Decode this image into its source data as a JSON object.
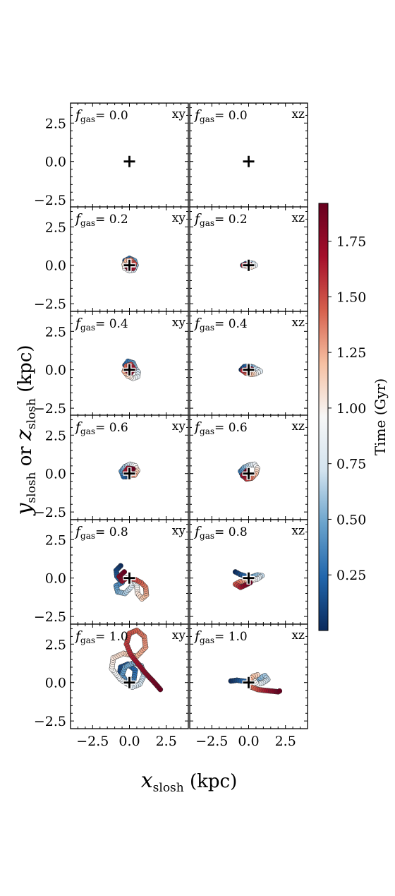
{
  "chart_data": {
    "type": "scatter",
    "xlabel": {
      "main": "x",
      "sub": "slosh",
      "unit": " (kpc)"
    },
    "ylabel": {
      "main1": "y",
      "sub1": "slosh",
      "or": " or ",
      "main2": "z",
      "sub2": "slosh",
      "unit": " (kpc)"
    },
    "xlim": [
      -4.0,
      4.0
    ],
    "ylim": [
      -3.0,
      3.8
    ],
    "xticks": [
      -2.5,
      0.0,
      2.5
    ],
    "xtick_labels": [
      "−2.5",
      "0.0",
      "2.5"
    ],
    "yticks": [
      -2.5,
      0.0,
      2.5
    ],
    "ytick_labels": [
      "−2.5",
      "0.0",
      "2.5"
    ],
    "colorbar": {
      "label": "Time (Gyr)",
      "range": [
        0.0,
        1.92
      ],
      "ticks": [
        0.25,
        0.5,
        0.75,
        1.0,
        1.25,
        1.5,
        1.75
      ],
      "tick_labels": [
        "0.25",
        "0.50",
        "0.75",
        "1.00",
        "1.25",
        "1.50",
        "1.75"
      ],
      "cmap_stops": [
        "#0b2a5c",
        "#2166ac",
        "#6aa3cc",
        "#d3e3ef",
        "#f7f7f7",
        "#f6c0a2",
        "#d6604d",
        "#a50f2b",
        "#67001f"
      ]
    },
    "marker_center": [
      0.0,
      0.0
    ],
    "fgas_symbol": {
      "main": "f",
      "sub": "gas"
    },
    "rows": [
      {
        "fgas": "= 0.0",
        "xy": {
          "label": "xy",
          "path": [
            [
              0,
              0
            ],
            [
              0.02,
              0.01
            ],
            [
              -0.01,
              0.02
            ]
          ]
        },
        "xz": {
          "label": "xz",
          "path": [
            [
              0,
              0
            ],
            [
              0.02,
              0.0
            ],
            [
              -0.01,
              0.01
            ]
          ]
        }
      },
      {
        "fgas": "= 0.2",
        "xy": {
          "label": "xy",
          "path": [
            [
              -0.3,
              0.0
            ],
            [
              -0.3,
              0.3
            ],
            [
              0.0,
              0.45
            ],
            [
              0.35,
              0.3
            ],
            [
              0.45,
              0.0
            ],
            [
              0.3,
              -0.3
            ],
            [
              0.0,
              -0.35
            ],
            [
              -0.3,
              -0.2
            ],
            [
              -0.35,
              0.05
            ],
            [
              -0.2,
              0.3
            ],
            [
              0.1,
              0.35
            ],
            [
              0.35,
              0.1
            ],
            [
              0.25,
              -0.2
            ],
            [
              -0.05,
              -0.25
            ],
            [
              -0.25,
              0.0
            ]
          ]
        },
        "xz": {
          "label": "xz",
          "path": [
            [
              -0.4,
              0.0
            ],
            [
              -0.2,
              0.1
            ],
            [
              0.1,
              0.15
            ],
            [
              0.35,
              0.1
            ],
            [
              0.45,
              0.0
            ],
            [
              0.2,
              -0.1
            ],
            [
              -0.1,
              -0.05
            ],
            [
              -0.35,
              0.0
            ],
            [
              -0.2,
              0.05
            ],
            [
              0.1,
              0.05
            ]
          ]
        }
      },
      {
        "fgas": "= 0.4",
        "xy": {
          "label": "xy",
          "path": [
            [
              0.0,
              0.0
            ],
            [
              -0.3,
              0.3
            ],
            [
              -0.1,
              0.55
            ],
            [
              0.25,
              0.45
            ],
            [
              0.4,
              0.1
            ],
            [
              0.6,
              -0.15
            ],
            [
              0.55,
              -0.45
            ],
            [
              0.25,
              -0.55
            ],
            [
              -0.1,
              -0.4
            ],
            [
              -0.35,
              -0.1
            ],
            [
              -0.2,
              0.25
            ],
            [
              0.1,
              0.35
            ],
            [
              0.3,
              0.05
            ],
            [
              0.1,
              -0.2
            ],
            [
              -0.1,
              -0.1
            ]
          ]
        },
        "xz": {
          "label": "xz",
          "path": [
            [
              -0.5,
              0.0
            ],
            [
              -0.3,
              0.2
            ],
            [
              0.0,
              0.25
            ],
            [
              0.35,
              0.15
            ],
            [
              0.65,
              0.0
            ],
            [
              0.8,
              -0.1
            ],
            [
              0.5,
              -0.25
            ],
            [
              0.15,
              -0.3
            ],
            [
              -0.2,
              -0.2
            ],
            [
              -0.4,
              -0.05
            ],
            [
              -0.1,
              0.05
            ],
            [
              0.2,
              0.05
            ]
          ]
        }
      },
      {
        "fgas": "= 0.6",
        "xy": {
          "label": "xy",
          "path": [
            [
              0.0,
              -0.2
            ],
            [
              -0.4,
              -0.2
            ],
            [
              -0.55,
              0.15
            ],
            [
              -0.3,
              0.45
            ],
            [
              0.05,
              0.6
            ],
            [
              0.4,
              0.5
            ],
            [
              0.55,
              0.2
            ],
            [
              0.35,
              -0.1
            ],
            [
              0.0,
              -0.1
            ],
            [
              -0.3,
              0.1
            ],
            [
              -0.1,
              0.35
            ],
            [
              0.25,
              0.3
            ]
          ]
        },
        "xz": {
          "label": "xz",
          "path": [
            [
              0.0,
              0.0
            ],
            [
              -0.4,
              -0.15
            ],
            [
              -0.55,
              0.15
            ],
            [
              -0.3,
              0.4
            ],
            [
              0.05,
              0.55
            ],
            [
              0.4,
              0.6
            ],
            [
              0.6,
              0.35
            ],
            [
              0.5,
              0.0
            ],
            [
              0.2,
              -0.3
            ],
            [
              -0.15,
              -0.35
            ],
            [
              -0.4,
              -0.1
            ],
            [
              -0.1,
              0.2
            ]
          ]
        }
      },
      {
        "fgas": "= 0.8",
        "xy": {
          "label": "xy",
          "path": [
            [
              -0.6,
              0.8
            ],
            [
              -0.9,
              0.5
            ],
            [
              -0.85,
              0.1
            ],
            [
              -0.5,
              -0.3
            ],
            [
              -0.9,
              -0.5
            ],
            [
              -0.8,
              -0.9
            ],
            [
              -0.3,
              -1.0
            ],
            [
              0.1,
              -0.6
            ],
            [
              0.3,
              -0.2
            ],
            [
              0.5,
              -0.5
            ],
            [
              0.55,
              -1.0
            ],
            [
              0.85,
              -1.35
            ],
            [
              1.15,
              -1.1
            ],
            [
              1.1,
              -0.6
            ],
            [
              0.8,
              -0.3
            ],
            [
              0.4,
              -0.1
            ],
            [
              -0.2,
              0.0
            ],
            [
              -0.5,
              -0.2
            ],
            [
              -0.7,
              0.1
            ],
            [
              -0.35,
              0.4
            ]
          ]
        },
        "xz": {
          "label": "xz",
          "path": [
            [
              -0.9,
              0.4
            ],
            [
              -0.6,
              0.25
            ],
            [
              -0.3,
              0.15
            ],
            [
              0.0,
              0.05
            ],
            [
              0.3,
              0.1
            ],
            [
              0.6,
              0.2
            ],
            [
              0.9,
              0.15
            ],
            [
              0.6,
              -0.05
            ],
            [
              0.2,
              -0.15
            ],
            [
              -0.2,
              -0.2
            ],
            [
              -0.6,
              -0.25
            ],
            [
              -0.9,
              -0.4
            ],
            [
              -0.55,
              -0.6
            ],
            [
              -0.2,
              -0.45
            ],
            [
              0.1,
              -0.3
            ]
          ]
        }
      },
      {
        "fgas": "= 1.0",
        "xy": {
          "label": "xy",
          "path": [
            [
              -0.2,
              0.0
            ],
            [
              -0.7,
              0.4
            ],
            [
              -0.6,
              1.0
            ],
            [
              -0.1,
              1.2
            ],
            [
              0.4,
              0.8
            ],
            [
              0.3,
              0.2
            ],
            [
              -0.2,
              0.05
            ],
            [
              -0.5,
              0.5
            ],
            [
              -0.3,
              1.0
            ],
            [
              0.3,
              1.3
            ],
            [
              0.8,
              1.1
            ],
            [
              1.0,
              0.5
            ],
            [
              0.7,
              -0.1
            ],
            [
              0.2,
              -0.3
            ],
            [
              -0.6,
              0.2
            ],
            [
              -1.2,
              0.9
            ],
            [
              -1.1,
              1.6
            ],
            [
              -0.4,
              1.9
            ],
            [
              0.5,
              1.7
            ],
            [
              1.1,
              2.3
            ],
            [
              1.0,
              3.0
            ],
            [
              0.5,
              3.4
            ],
            [
              0.0,
              3.2
            ],
            [
              -0.2,
              2.5
            ],
            [
              0.1,
              1.8
            ],
            [
              0.6,
              1.2
            ],
            [
              1.1,
              0.6
            ],
            [
              1.6,
              0.1
            ],
            [
              2.1,
              -0.45
            ]
          ]
        },
        "xz": {
          "label": "xz",
          "path": [
            [
              -1.2,
              0.1
            ],
            [
              -0.8,
              0.15
            ],
            [
              -0.4,
              0.1
            ],
            [
              0.0,
              0.05
            ],
            [
              0.4,
              0.15
            ],
            [
              0.8,
              0.3
            ],
            [
              1.1,
              0.45
            ],
            [
              1.3,
              0.2
            ],
            [
              1.0,
              0.0
            ],
            [
              0.6,
              -0.1
            ],
            [
              0.3,
              0.2
            ],
            [
              0.6,
              0.5
            ],
            [
              0.3,
              0.4
            ],
            [
              0.0,
              0.1
            ],
            [
              0.2,
              -0.3
            ],
            [
              0.6,
              -0.45
            ],
            [
              1.0,
              -0.5
            ],
            [
              1.5,
              -0.55
            ],
            [
              2.0,
              -0.6
            ],
            [
              2.1,
              -0.55
            ]
          ]
        }
      }
    ]
  }
}
